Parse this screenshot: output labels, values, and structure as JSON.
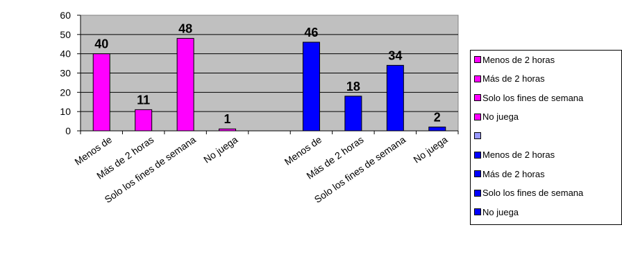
{
  "chart_data": {
    "type": "bar",
    "ylim": [
      0,
      60
    ],
    "yticks": [
      0,
      10,
      20,
      30,
      40,
      50,
      60
    ],
    "grid": true,
    "legend_position": "right",
    "colors": {
      "plot_bg": "#c0c0c0",
      "magenta": "#ff00ff",
      "blue": "#0000ff",
      "empty": "#9999ff"
    },
    "categories": [
      "Menos de 2 horas",
      "Más de 2 horas",
      "Solo los fines de semana",
      "No juega",
      "",
      "Menos de 2 horas",
      "Más de 2 horas",
      "Solo los fines de semana",
      "No juega"
    ],
    "x_tick_labels": [
      "Menos de",
      "Más de 2 horas",
      "Solo los fines de semana",
      "No juega",
      "",
      "Menos de",
      "Más de 2 horas",
      "Solo los fines de semana",
      "No juega"
    ],
    "values": [
      40,
      11,
      48,
      1,
      null,
      46,
      18,
      34,
      2
    ],
    "data_labels": [
      "40",
      "11",
      "48",
      "1",
      "",
      "46",
      "18",
      "34",
      "2"
    ],
    "bar_colors": [
      "#ff00ff",
      "#ff00ff",
      "#ff00ff",
      "#ff00ff",
      "#9999ff",
      "#0000ff",
      "#0000ff",
      "#0000ff",
      "#0000ff"
    ],
    "legend": [
      {
        "label": "Menos de 2 horas",
        "color": "#ff00ff"
      },
      {
        "label": "Más de 2 horas",
        "color": "#ff00ff"
      },
      {
        "label": "Solo los fines de semana",
        "color": "#ff00ff"
      },
      {
        "label": "No juega",
        "color": "#ff00ff"
      },
      {
        "label": "",
        "color": "#9999ff"
      },
      {
        "label": "Menos de 2 horas",
        "color": "#0000ff"
      },
      {
        "label": "Más de 2 horas",
        "color": "#0000ff"
      },
      {
        "label": "Solo los fines de semana",
        "color": "#0000ff"
      },
      {
        "label": "No juega",
        "color": "#0000ff"
      }
    ]
  }
}
